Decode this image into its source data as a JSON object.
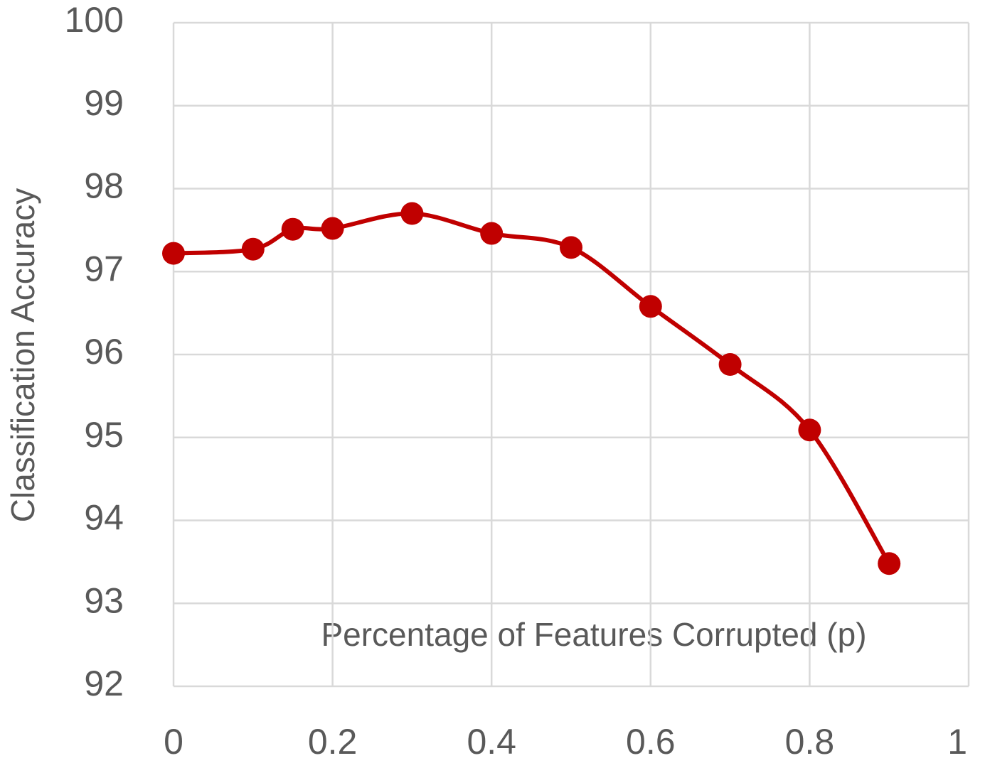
{
  "chart_data": {
    "type": "line",
    "x_label": "Percentage of Features Corrupted (p)",
    "y_label": "Classification Accuracy",
    "x": [
      0,
      0.1,
      0.15,
      0.2,
      0.3,
      0.4,
      0.5,
      0.6,
      0.7,
      0.8,
      0.9
    ],
    "series": [
      {
        "color": "#c00000",
        "values": [
          97.22,
          97.27,
          97.51,
          97.52,
          97.7,
          97.46,
          97.29,
          96.58,
          95.88,
          95.09,
          93.48
        ]
      }
    ],
    "xlim": [
      0,
      1
    ],
    "xticks": [
      0,
      0.2,
      0.4,
      0.6,
      0.8,
      1
    ],
    "ylim": [
      92,
      100
    ],
    "yticks": [
      92,
      93,
      94,
      95,
      96,
      97,
      98,
      99,
      100
    ],
    "grid": true,
    "smooth": true,
    "markers": true
  }
}
